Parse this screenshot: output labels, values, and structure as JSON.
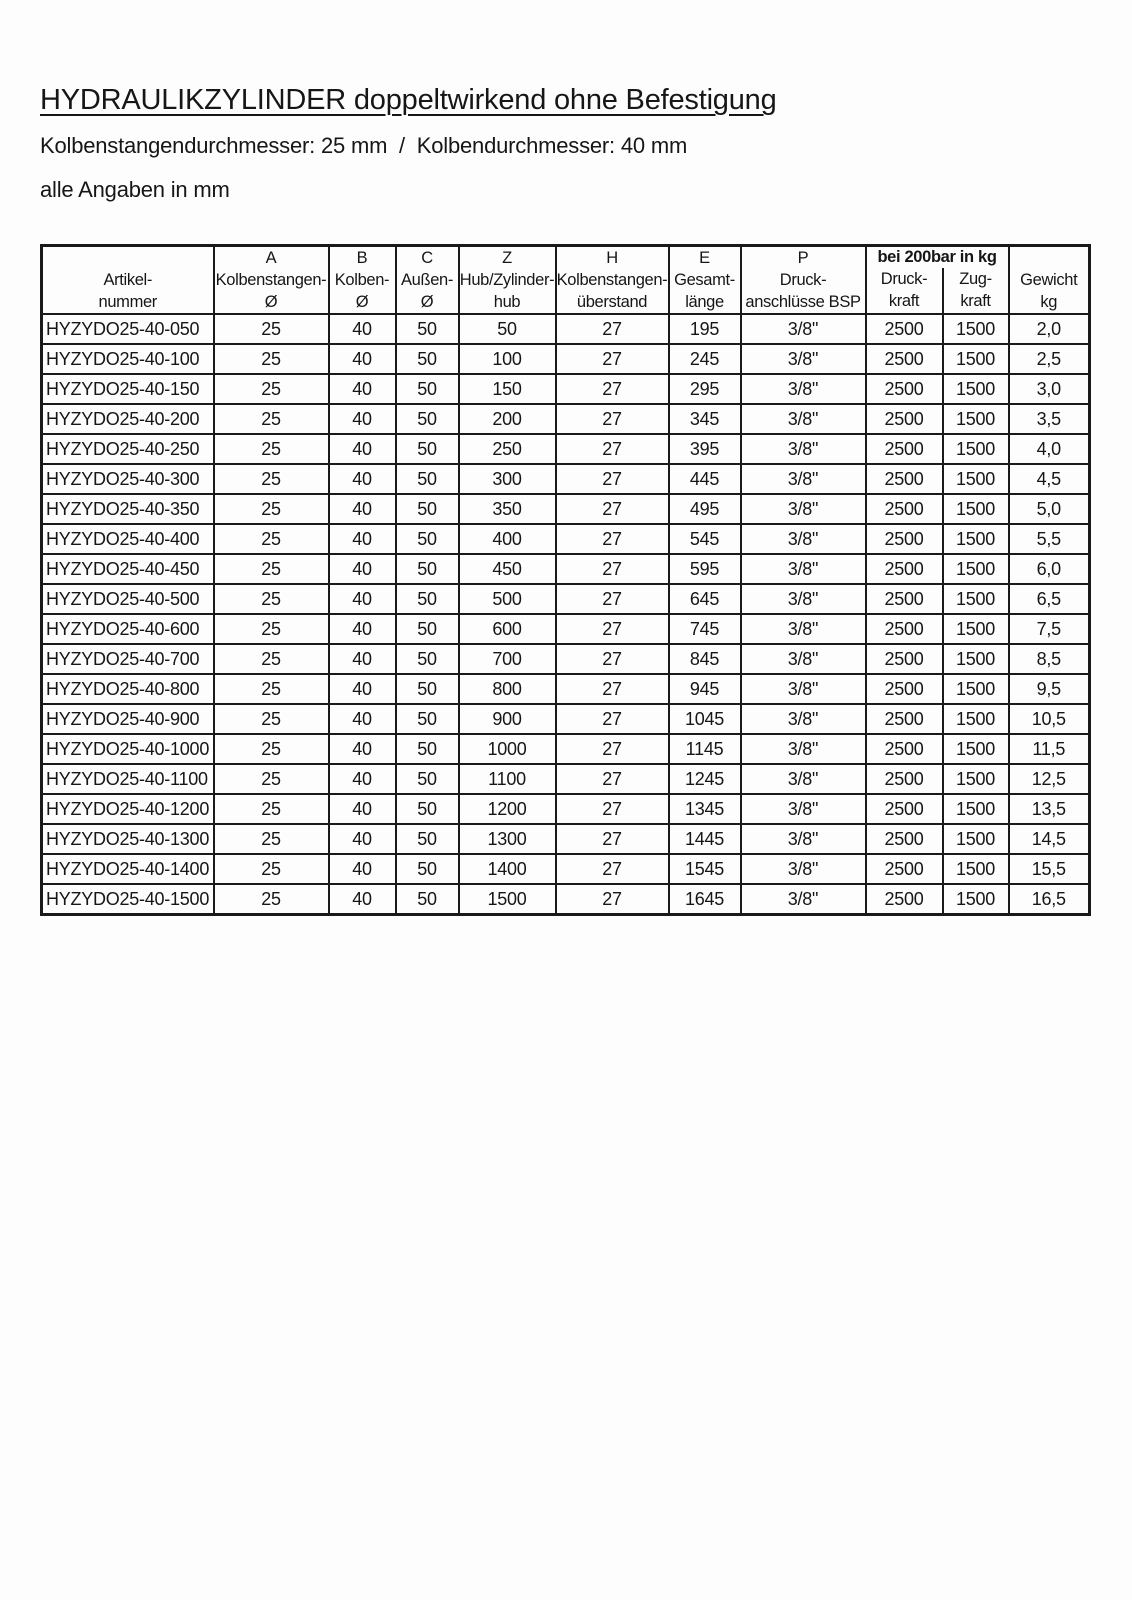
{
  "page": {
    "title": "HYDRAULIKZYLINDER doppeltwirkend ohne Befestigung",
    "subtitle": "Kolbenstangendurchmesser: 25 mm  /  Kolbendurchmesser: 40 mm",
    "note": "alle Angaben in mm"
  },
  "table": {
    "group_header": "bei 200bar in kg",
    "columns": [
      {
        "id": "artikelnummer",
        "line1": "",
        "line2": "Artikel-",
        "line3": "nummer"
      },
      {
        "id": "kolbenstangen-d",
        "line1": "A",
        "line2": "Kolbenstangen-",
        "line3": "Ø"
      },
      {
        "id": "kolben-d",
        "line1": "B",
        "line2": "Kolben-",
        "line3": "Ø"
      },
      {
        "id": "aussen-d",
        "line1": "C",
        "line2": "Außen-",
        "line3": "Ø"
      },
      {
        "id": "hub",
        "line1": "Z",
        "line2": "Hub/Zylinder-",
        "line3": "hub"
      },
      {
        "id": "ueberstand",
        "line1": "H",
        "line2": "Kolbenstangen-",
        "line3": "überstand"
      },
      {
        "id": "gesamtlaenge",
        "line1": "E",
        "line2": "Gesamt-",
        "line3": "länge"
      },
      {
        "id": "druckanschluesse",
        "line1": "P",
        "line2": "Druck-",
        "line3": "anschlüsse BSP"
      },
      {
        "id": "druckkraft",
        "line1": "Druck-",
        "line2": "kraft"
      },
      {
        "id": "zugkraft",
        "line1": "Zug-",
        "line2": "kraft"
      },
      {
        "id": "gewicht",
        "line1": "",
        "line2": "Gewicht",
        "line3": "kg"
      }
    ],
    "rows": [
      [
        "HYZYDO25-40-050",
        "25",
        "40",
        "50",
        "50",
        "27",
        "195",
        "3/8\"",
        "2500",
        "1500",
        "2,0"
      ],
      [
        "HYZYDO25-40-100",
        "25",
        "40",
        "50",
        "100",
        "27",
        "245",
        "3/8\"",
        "2500",
        "1500",
        "2,5"
      ],
      [
        "HYZYDO25-40-150",
        "25",
        "40",
        "50",
        "150",
        "27",
        "295",
        "3/8\"",
        "2500",
        "1500",
        "3,0"
      ],
      [
        "HYZYDO25-40-200",
        "25",
        "40",
        "50",
        "200",
        "27",
        "345",
        "3/8\"",
        "2500",
        "1500",
        "3,5"
      ],
      [
        "HYZYDO25-40-250",
        "25",
        "40",
        "50",
        "250",
        "27",
        "395",
        "3/8\"",
        "2500",
        "1500",
        "4,0"
      ],
      [
        "HYZYDO25-40-300",
        "25",
        "40",
        "50",
        "300",
        "27",
        "445",
        "3/8\"",
        "2500",
        "1500",
        "4,5"
      ],
      [
        "HYZYDO25-40-350",
        "25",
        "40",
        "50",
        "350",
        "27",
        "495",
        "3/8\"",
        "2500",
        "1500",
        "5,0"
      ],
      [
        "HYZYDO25-40-400",
        "25",
        "40",
        "50",
        "400",
        "27",
        "545",
        "3/8\"",
        "2500",
        "1500",
        "5,5"
      ],
      [
        "HYZYDO25-40-450",
        "25",
        "40",
        "50",
        "450",
        "27",
        "595",
        "3/8\"",
        "2500",
        "1500",
        "6,0"
      ],
      [
        "HYZYDO25-40-500",
        "25",
        "40",
        "50",
        "500",
        "27",
        "645",
        "3/8\"",
        "2500",
        "1500",
        "6,5"
      ],
      [
        "HYZYDO25-40-600",
        "25",
        "40",
        "50",
        "600",
        "27",
        "745",
        "3/8\"",
        "2500",
        "1500",
        "7,5"
      ],
      [
        "HYZYDO25-40-700",
        "25",
        "40",
        "50",
        "700",
        "27",
        "845",
        "3/8\"",
        "2500",
        "1500",
        "8,5"
      ],
      [
        "HYZYDO25-40-800",
        "25",
        "40",
        "50",
        "800",
        "27",
        "945",
        "3/8\"",
        "2500",
        "1500",
        "9,5"
      ],
      [
        "HYZYDO25-40-900",
        "25",
        "40",
        "50",
        "900",
        "27",
        "1045",
        "3/8\"",
        "2500",
        "1500",
        "10,5"
      ],
      [
        "HYZYDO25-40-1000",
        "25",
        "40",
        "50",
        "1000",
        "27",
        "1145",
        "3/8\"",
        "2500",
        "1500",
        "11,5"
      ],
      [
        "HYZYDO25-40-1100",
        "25",
        "40",
        "50",
        "1100",
        "27",
        "1245",
        "3/8\"",
        "2500",
        "1500",
        "12,5"
      ],
      [
        "HYZYDO25-40-1200",
        "25",
        "40",
        "50",
        "1200",
        "27",
        "1345",
        "3/8\"",
        "2500",
        "1500",
        "13,5"
      ],
      [
        "HYZYDO25-40-1300",
        "25",
        "40",
        "50",
        "1300",
        "27",
        "1445",
        "3/8\"",
        "2500",
        "1500",
        "14,5"
      ],
      [
        "HYZYDO25-40-1400",
        "25",
        "40",
        "50",
        "1400",
        "27",
        "1545",
        "3/8\"",
        "2500",
        "1500",
        "15,5"
      ],
      [
        "HYZYDO25-40-1500",
        "25",
        "40",
        "50",
        "1500",
        "27",
        "1645",
        "3/8\"",
        "2500",
        "1500",
        "16,5"
      ]
    ]
  }
}
